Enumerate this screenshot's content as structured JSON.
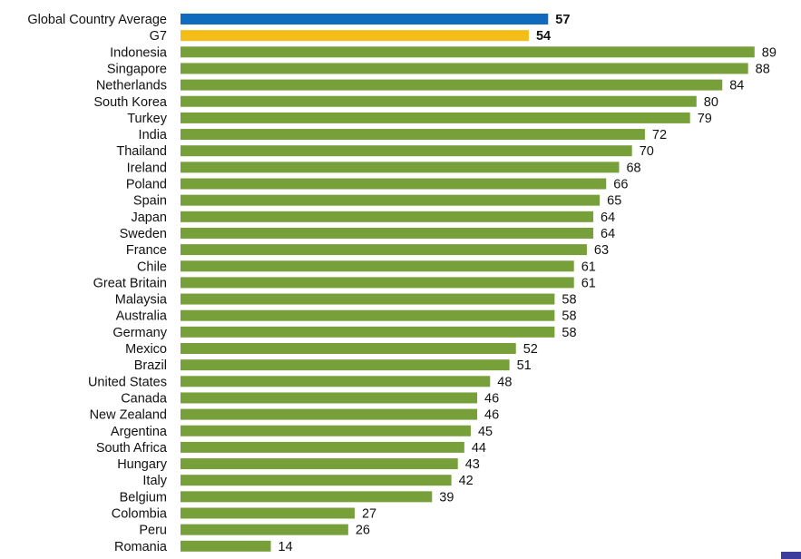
{
  "chart_data": {
    "type": "bar",
    "orientation": "horizontal",
    "title": "",
    "xlabel": "",
    "ylabel": "",
    "xlim": [
      0,
      89
    ],
    "grid": false,
    "legend": "none",
    "colors": {
      "summary_primary": "#0f6bbd",
      "summary_secondary": "#f5bd18",
      "country": "#77a03b",
      "corner_marker": "#3d3d9e"
    },
    "categories": [
      "Global Country Average",
      "G7",
      "Indonesia",
      "Singapore",
      "Netherlands",
      "South Korea",
      "Turkey",
      "India",
      "Thailand",
      "Ireland",
      "Poland",
      "Spain",
      "Japan",
      "Sweden",
      "France",
      "Chile",
      "Great Britain",
      "Malaysia",
      "Australia",
      "Germany",
      "Mexico",
      "Brazil",
      "United States",
      "Canada",
      "New Zealand",
      "Argentina",
      "South Africa",
      "Hungary",
      "Italy",
      "Belgium",
      "Colombia",
      "Peru",
      "Romania"
    ],
    "values": [
      57,
      54,
      89,
      88,
      84,
      80,
      79,
      72,
      70,
      68,
      66,
      65,
      64,
      64,
      63,
      61,
      61,
      58,
      58,
      58,
      52,
      51,
      48,
      46,
      46,
      45,
      44,
      43,
      42,
      39,
      27,
      26,
      14
    ],
    "value_labels": [
      "57",
      "54",
      "89",
      "88",
      "84",
      "80",
      "79",
      "72",
      "70",
      "68",
      "66",
      "65",
      "64",
      "64",
      "63",
      "61",
      "61",
      "58",
      "58",
      "58",
      "52",
      "51",
      "48",
      "46",
      "46",
      "45",
      "44",
      "43",
      "42",
      "39",
      "27",
      "26",
      "14"
    ],
    "bar_colors": [
      "#0f6bbd",
      "#f5bd18",
      "#77a03b",
      "#77a03b",
      "#77a03b",
      "#77a03b",
      "#77a03b",
      "#77a03b",
      "#77a03b",
      "#77a03b",
      "#77a03b",
      "#77a03b",
      "#77a03b",
      "#77a03b",
      "#77a03b",
      "#77a03b",
      "#77a03b",
      "#77a03b",
      "#77a03b",
      "#77a03b",
      "#77a03b",
      "#77a03b",
      "#77a03b",
      "#77a03b",
      "#77a03b",
      "#77a03b",
      "#77a03b",
      "#77a03b",
      "#77a03b",
      "#77a03b",
      "#77a03b",
      "#77a03b",
      "#77a03b"
    ],
    "bold_labels": [
      true,
      true,
      false,
      false,
      false,
      false,
      false,
      false,
      false,
      false,
      false,
      false,
      false,
      false,
      false,
      false,
      false,
      false,
      false,
      false,
      false,
      false,
      false,
      false,
      false,
      false,
      false,
      false,
      false,
      false,
      false,
      false,
      false
    ]
  }
}
